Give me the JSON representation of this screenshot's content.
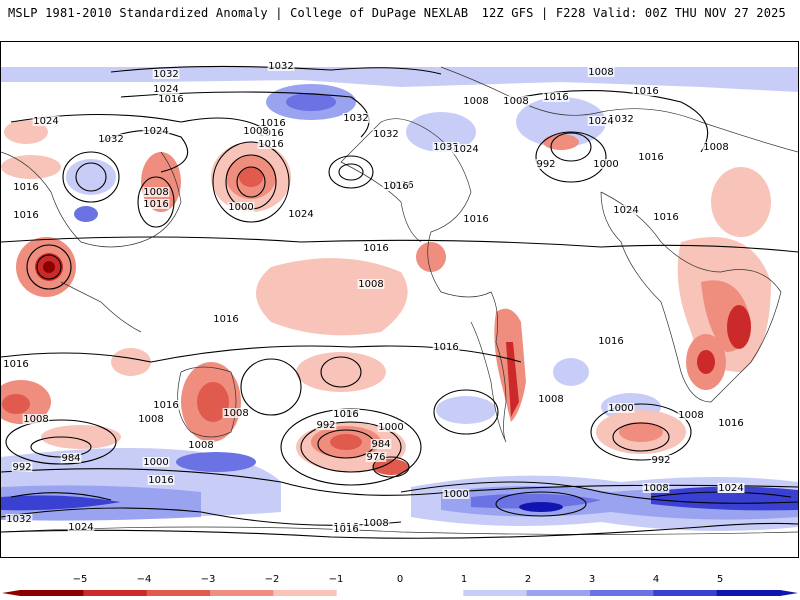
{
  "header": {
    "title_left": "MSLP 1981-2010 Standardized Anomaly | College of DuPage NEXLAB",
    "title_right": "12Z GFS | F228 Valid: 00Z THU NOV 27 2025"
  },
  "colors": {
    "neg5": "#8b0000",
    "neg4": "#cc2a2a",
    "neg3": "#e05a4e",
    "neg2": "#ef8e7f",
    "neg1": "#f8c4b9",
    "zero": "#ffffff",
    "pos1": "#c8cdf8",
    "pos2": "#9aa3f0",
    "pos3": "#6a72e4",
    "pos4": "#3a40d2",
    "pos5": "#1015b0"
  },
  "colorbar": {
    "labels": [
      "−5",
      "−4",
      "−3",
      "−2",
      "−1",
      "0",
      "1",
      "2",
      "3",
      "4",
      "5"
    ]
  },
  "contour_labels": [
    "1032",
    "1032",
    "1024",
    "1016",
    "1024",
    "1024",
    "1016",
    "1032",
    "1016",
    "1016",
    "1032",
    "1016",
    "1032",
    "1008",
    "1016",
    "1008",
    "1016",
    "1000",
    "1024",
    "1016",
    "1016",
    "1032",
    "1016",
    "1008",
    "1024",
    "1032",
    "1024",
    "992",
    "1000",
    "1016",
    "1024",
    "1016",
    "1008",
    "1016",
    "1008",
    "1008",
    "1016",
    "1016",
    "1008",
    "1016",
    "1016",
    "1016",
    "1016",
    "1008",
    "1016",
    "1008",
    "1008",
    "984",
    "1000",
    "1000",
    "992",
    "984",
    "976",
    "1008",
    "992",
    "1000",
    "1016",
    "1008",
    "1024",
    "1032",
    "1016",
    "1008",
    "1008",
    "1024",
    "1016",
    "1000",
    "992",
    "1008",
    "1008",
    "1016",
    "1016",
    "1016",
    "1024"
  ]
}
